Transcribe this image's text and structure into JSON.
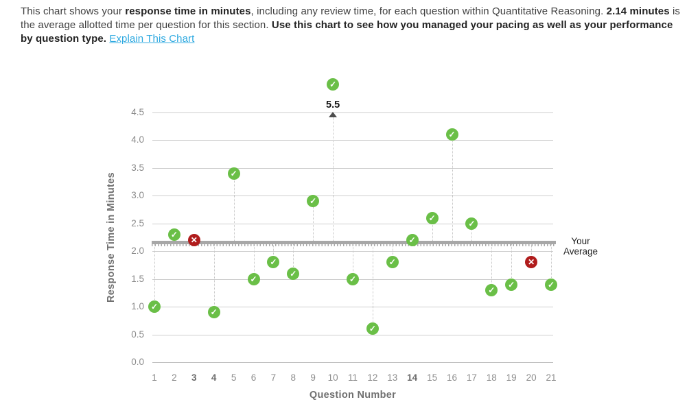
{
  "header": {
    "segments": [
      {
        "text": "This chart shows your "
      },
      {
        "text": "response time in minutes"
      },
      {
        "text": ", including any review time, for each question within Quantitative Reasoning. "
      },
      {
        "text": "2.14 minutes"
      },
      {
        "text": " is the average allotted time per question for this section. "
      },
      {
        "text": "Use this chart to see how you managed your pacing as well as your performance by question type."
      },
      {
        "text": " "
      }
    ],
    "link_label": "Explain This Chart"
  },
  "chart_data": {
    "type": "scatter",
    "title": "",
    "xlabel": "Question Number",
    "ylabel": "Response Time in Minutes",
    "xlim": [
      1,
      21
    ],
    "ylim": [
      0,
      4.5
    ],
    "ytick_step": 0.5,
    "grid": "horizontal",
    "bold_xticks": [
      3,
      4,
      14
    ],
    "average": 2.14,
    "average_label": "Your Average",
    "offchart_annotation": "5.5",
    "points": [
      {
        "q": 1,
        "minutes": 1.0,
        "result": "correct"
      },
      {
        "q": 2,
        "minutes": 2.3,
        "result": "correct"
      },
      {
        "q": 3,
        "minutes": 2.2,
        "result": "incorrect"
      },
      {
        "q": 4,
        "minutes": 0.9,
        "result": "correct"
      },
      {
        "q": 5,
        "minutes": 3.4,
        "result": "correct"
      },
      {
        "q": 6,
        "minutes": 1.5,
        "result": "correct"
      },
      {
        "q": 7,
        "minutes": 1.8,
        "result": "correct"
      },
      {
        "q": 8,
        "minutes": 1.6,
        "result": "correct"
      },
      {
        "q": 9,
        "minutes": 2.9,
        "result": "correct"
      },
      {
        "q": 10,
        "minutes": 5.5,
        "result": "correct",
        "offchart": true
      },
      {
        "q": 11,
        "minutes": 1.5,
        "result": "correct"
      },
      {
        "q": 12,
        "minutes": 0.6,
        "result": "correct"
      },
      {
        "q": 13,
        "minutes": 1.8,
        "result": "correct"
      },
      {
        "q": 14,
        "minutes": 2.2,
        "result": "correct"
      },
      {
        "q": 15,
        "minutes": 2.6,
        "result": "correct"
      },
      {
        "q": 16,
        "minutes": 4.1,
        "result": "correct"
      },
      {
        "q": 17,
        "minutes": 2.5,
        "result": "correct"
      },
      {
        "q": 18,
        "minutes": 1.3,
        "result": "correct"
      },
      {
        "q": 19,
        "minutes": 1.4,
        "result": "correct"
      },
      {
        "q": 20,
        "minutes": 1.8,
        "result": "incorrect"
      },
      {
        "q": 21,
        "minutes": 1.4,
        "result": "correct"
      }
    ]
  },
  "icons": {
    "correct": "✓",
    "incorrect": "✕"
  },
  "colors": {
    "correct": "#6abf47",
    "incorrect": "#b01c1c",
    "link": "#2ea9e0",
    "average_line": "#a7a7a7",
    "gridline": "#cdcdcd",
    "axis_text": "#8a8a8a"
  }
}
